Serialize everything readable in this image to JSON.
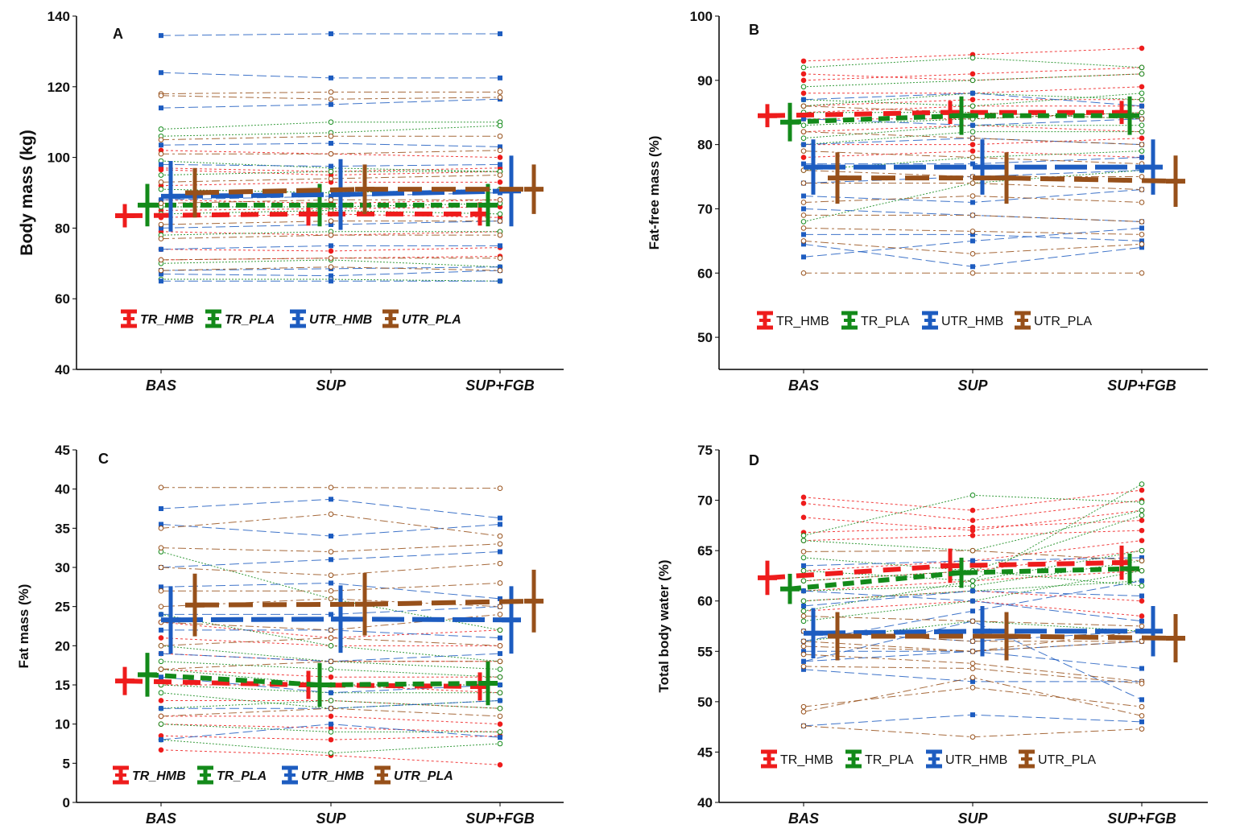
{
  "chart_data": [
    {
      "type": "line",
      "panel_label": "A",
      "ylabel": "Body mass (kg)",
      "ylim": [
        40,
        140
      ],
      "yticks": [
        40,
        60,
        80,
        100,
        120,
        140
      ],
      "categories": [
        "BAS",
        "SUP",
        "SUP+FGB"
      ],
      "legend_italic": true,
      "legend_placement": "bottom-left",
      "series": [
        {
          "name": "TR_HMB",
          "color": "#ee1c1c",
          "mean": [
            83.5,
            84,
            84
          ],
          "sd": [
            3.3,
            3.3,
            3.3
          ],
          "individuals": [
            [
              102,
              101,
              100
            ],
            [
              97,
              96,
              97
            ],
            [
              92,
              93,
              93
            ],
            [
              88,
              87,
              88
            ],
            [
              83,
              84,
              83
            ],
            [
              79,
              78,
              79
            ],
            [
              74,
              73.5,
              74.5
            ],
            [
              71,
              71.5,
              72
            ],
            [
              96.5,
              95,
              96
            ],
            [
              85,
              85.5,
              86
            ]
          ]
        },
        {
          "name": "TR_PLA",
          "color": "#138a1a",
          "mean": [
            86.5,
            86.5,
            86.5
          ],
          "sd": [
            6,
            6,
            6
          ],
          "individuals": [
            [
              108,
              110,
              110
            ],
            [
              106,
              107,
              109
            ],
            [
              99,
              97,
              96
            ],
            [
              91,
              90,
              91
            ],
            [
              84,
              85,
              84
            ],
            [
              78,
              79,
              79
            ],
            [
              70,
              71,
              69
            ],
            [
              65.5,
              65.5,
              65
            ],
            [
              86,
              86,
              87
            ],
            [
              95,
              96,
              96
            ]
          ]
        },
        {
          "name": "UTR_HMB",
          "color": "#1d5cc0",
          "mean": [
            89,
            89.5,
            90.5
          ],
          "sd": [
            10,
            10,
            10
          ],
          "individuals": [
            [
              134.5,
              135,
              135
            ],
            [
              124,
              122.5,
              122.5
            ],
            [
              114,
              115,
              116.5
            ],
            [
              103.5,
              104,
              103
            ],
            [
              98,
              97.5,
              98
            ],
            [
              88,
              89,
              90
            ],
            [
              80,
              81,
              82
            ],
            [
              74,
              75,
              75
            ],
            [
              68,
              68.5,
              69
            ],
            [
              65,
              65,
              65
            ],
            [
              67,
              66.5,
              68
            ]
          ]
        },
        {
          "name": "UTR_PLA",
          "color": "#97501a",
          "mean": [
            90,
            91,
            91
          ],
          "sd": [
            7,
            7,
            7
          ],
          "individuals": [
            [
              118,
              118.5,
              118.5
            ],
            [
              117.5,
              116.5,
              117
            ],
            [
              105,
              106,
              106
            ],
            [
              101,
              101,
              102
            ],
            [
              93,
              94,
              95
            ],
            [
              87,
              88,
              88
            ],
            [
              81,
              82,
              82
            ],
            [
              77,
              78,
              78
            ],
            [
              71,
              71.5,
              71.5
            ],
            [
              68,
              69,
              68
            ]
          ]
        }
      ]
    },
    {
      "type": "line",
      "panel_label": "B",
      "ylabel": "Fat-free mass (%)",
      "ylim": [
        45,
        100
      ],
      "yticks": [
        50,
        60,
        70,
        80,
        90,
        100
      ],
      "categories": [
        "BAS",
        "SUP",
        "SUP+FGB"
      ],
      "legend_italic": false,
      "legend_placement": "bottom-left",
      "series": [
        {
          "name": "TR_HMB",
          "color": "#ee1c1c",
          "mean": [
            84.5,
            85,
            85
          ],
          "sd": [
            1.8,
            1.8,
            1.8
          ],
          "individuals": [
            [
              93,
              94,
              95
            ],
            [
              91,
              90,
              91
            ],
            [
              88,
              88,
              89
            ],
            [
              86,
              87,
              87
            ],
            [
              84,
              84,
              85
            ],
            [
              82,
              83,
              82
            ],
            [
              80,
              80,
              81
            ],
            [
              78,
              79,
              78
            ],
            [
              90,
              91,
              92
            ],
            [
              85,
              86,
              86
            ]
          ]
        },
        {
          "name": "TR_PLA",
          "color": "#138a1a",
          "mean": [
            83.5,
            84.5,
            84.5
          ],
          "sd": [
            3,
            3,
            3
          ],
          "individuals": [
            [
              92,
              93.5,
              92
            ],
            [
              89,
              90,
              91
            ],
            [
              87,
              86,
              88
            ],
            [
              85,
              85,
              84
            ],
            [
              83,
              84,
              85
            ],
            [
              80,
              82,
              82
            ],
            [
              76,
              78,
              79
            ],
            [
              68,
              74,
              76
            ],
            [
              81,
              83,
              83
            ],
            [
              86,
              88,
              87
            ]
          ]
        },
        {
          "name": "UTR_HMB",
          "color": "#1d5cc0",
          "mean": [
            76.5,
            76.5,
            76.5
          ],
          "sd": [
            4.3,
            4.3,
            4.3
          ],
          "individuals": [
            [
              87,
              88,
              86
            ],
            [
              84,
              83,
              84
            ],
            [
              80,
              81,
              80
            ],
            [
              77,
              77,
              78
            ],
            [
              74,
              75,
              76
            ],
            [
              72,
              71,
              73
            ],
            [
              70,
              69,
              68
            ],
            [
              66,
              66,
              65
            ],
            [
              64.5,
              61,
              64
            ],
            [
              62.5,
              65,
              67
            ]
          ]
        },
        {
          "name": "UTR_PLA",
          "color": "#97501a",
          "mean": [
            74.8,
            74.8,
            74.3
          ],
          "sd": [
            4,
            4,
            4
          ],
          "individuals": [
            [
              86,
              85,
              84
            ],
            [
              82,
              81,
              80
            ],
            [
              79,
              78,
              77
            ],
            [
              76,
              75,
              75
            ],
            [
              74,
              74,
              73
            ],
            [
              71,
              72,
              71
            ],
            [
              69,
              69,
              68
            ],
            [
              67,
              66.5,
              66
            ],
            [
              65,
              63,
              64.5
            ],
            [
              60,
              60,
              60
            ]
          ]
        }
      ]
    },
    {
      "type": "line",
      "panel_label": "C",
      "ylabel": "Fat mass (%)",
      "ylim": [
        0,
        45
      ],
      "yticks": [
        0,
        5,
        10,
        15,
        20,
        25,
        30,
        35,
        40,
        45
      ],
      "categories": [
        "BAS",
        "SUP",
        "SUP+FGB"
      ],
      "legend_italic": true,
      "legend_placement": "bottom-left",
      "series": [
        {
          "name": "TR_HMB",
          "color": "#ee1c1c",
          "mean": [
            15.5,
            15,
            14.8
          ],
          "sd": [
            1.8,
            1.8,
            1.8
          ],
          "individuals": [
            [
              6.7,
              6,
              4.8
            ],
            [
              8.5,
              8,
              8.5
            ],
            [
              11,
              11,
              10
            ],
            [
              13,
              13,
              12
            ],
            [
              15,
              15,
              14
            ],
            [
              17,
              16,
              16
            ],
            [
              19,
              18,
              18
            ],
            [
              21,
              20,
              20
            ],
            [
              23,
              21,
              22
            ],
            [
              10,
              9.5,
              9
            ]
          ]
        },
        {
          "name": "TR_PLA",
          "color": "#138a1a",
          "mean": [
            16.3,
            15,
            15.2
          ],
          "sd": [
            2.8,
            2.8,
            2.8
          ],
          "individuals": [
            [
              32,
              26,
              22
            ],
            [
              24,
              20,
              18
            ],
            [
              20,
              18,
              17
            ],
            [
              17,
              15,
              15
            ],
            [
              15,
              14,
              14
            ],
            [
              12,
              13,
              12
            ],
            [
              10,
              9,
              9
            ],
            [
              8,
              6.3,
              7.5
            ],
            [
              14,
              12,
              13
            ],
            [
              18,
              17,
              16
            ]
          ]
        },
        {
          "name": "UTR_HMB",
          "color": "#1d5cc0",
          "mean": [
            23.3,
            23.4,
            23.3
          ],
          "sd": [
            4.3,
            4.3,
            4.3
          ],
          "individuals": [
            [
              37.5,
              38.7,
              36.3
            ],
            [
              35.5,
              34,
              35.5
            ],
            [
              30,
              31,
              32
            ],
            [
              27.5,
              28,
              26
            ],
            [
              24,
              24,
              25
            ],
            [
              22,
              22,
              21
            ],
            [
              19,
              18,
              19
            ],
            [
              16,
              14,
              15
            ],
            [
              12,
              12,
              13
            ],
            [
              8,
              10,
              8.3
            ]
          ]
        },
        {
          "name": "UTR_PLA",
          "color": "#97501a",
          "mean": [
            25.2,
            25.3,
            25.7
          ],
          "sd": [
            4,
            4,
            4
          ],
          "individuals": [
            [
              40.2,
              40.2,
              40.1
            ],
            [
              35,
              36.8,
              34
            ],
            [
              32.5,
              32,
              33
            ],
            [
              30,
              29,
              30.5
            ],
            [
              27,
              27,
              28
            ],
            [
              25,
              26,
              25
            ],
            [
              23,
              22,
              24
            ],
            [
              20,
              21,
              20
            ],
            [
              17,
              18,
              18
            ],
            [
              11,
              12,
              11
            ]
          ]
        }
      ]
    },
    {
      "type": "line",
      "panel_label": "D",
      "ylabel": "Total body water (%)",
      "ylim": [
        40,
        75
      ],
      "yticks": [
        40,
        45,
        50,
        55,
        60,
        65,
        70,
        75
      ],
      "categories": [
        "BAS",
        "SUP",
        "SUP+FGB"
      ],
      "legend_italic": false,
      "legend_placement": "bottom-left",
      "series": [
        {
          "name": "TR_HMB",
          "color": "#ee1c1c",
          "mean": [
            62.3,
            63.5,
            63.8
          ],
          "sd": [
            1.7,
            1.7,
            1.7
          ],
          "individuals": [
            [
              70.3,
              69,
              71
            ],
            [
              69.7,
              68,
              70
            ],
            [
              68.3,
              67,
              69
            ],
            [
              66.8,
              67.3,
              68
            ],
            [
              66,
              66.5,
              67
            ],
            [
              63,
              64,
              66
            ],
            [
              62,
              63,
              65
            ],
            [
              61,
              62,
              63
            ],
            [
              60,
              61,
              60
            ],
            [
              59,
              60,
              58.5
            ]
          ]
        },
        {
          "name": "TR_PLA",
          "color": "#138a1a",
          "mean": [
            61.2,
            62.8,
            63.2
          ],
          "sd": [
            1.5,
            1.5,
            1.5
          ],
          "individuals": [
            [
              66.5,
              70.5,
              69.8
            ],
            [
              66,
              65,
              69
            ],
            [
              64.3,
              63,
              68.5
            ],
            [
              63,
              62,
              71.6
            ],
            [
              61,
              61.5,
              64
            ],
            [
              60,
              61,
              62
            ],
            [
              58,
              60,
              63
            ],
            [
              56,
              58,
              57
            ],
            [
              62,
              63,
              61.5
            ],
            [
              59,
              62,
              65
            ]
          ]
        },
        {
          "name": "UTR_HMB",
          "color": "#1d5cc0",
          "mean": [
            56.8,
            57,
            57
          ],
          "sd": [
            2.5,
            2.5,
            2.5
          ],
          "individuals": [
            [
              63.5,
              64,
              64.3
            ],
            [
              61,
              60,
              58
            ],
            [
              59.5,
              61,
              60.5
            ],
            [
              57,
              56,
              57
            ],
            [
              55,
              55,
              56
            ],
            [
              54,
              55,
              53.3
            ],
            [
              53.2,
              52,
              52
            ],
            [
              47.6,
              48.7,
              48
            ],
            [
              54,
              58,
              50.2
            ],
            [
              56,
              59,
              62
            ]
          ]
        },
        {
          "name": "UTR_PLA",
          "color": "#97501a",
          "mean": [
            56.5,
            56.5,
            56.3
          ],
          "sd": [
            2.4,
            2.4,
            2.4
          ],
          "individuals": [
            [
              64.9,
              65,
              64
            ],
            [
              58.5,
              58,
              57.5
            ],
            [
              57,
              56,
              56
            ],
            [
              55.5,
              55,
              56
            ],
            [
              54.7,
              53.8,
              52
            ],
            [
              53.5,
              53.3,
              51.8
            ],
            [
              49.5,
              51.4,
              49.5
            ],
            [
              49,
              52.4,
              48.6
            ],
            [
              47.6,
              46.5,
              47.3
            ],
            [
              56,
              55,
              57
            ]
          ]
        }
      ]
    }
  ]
}
